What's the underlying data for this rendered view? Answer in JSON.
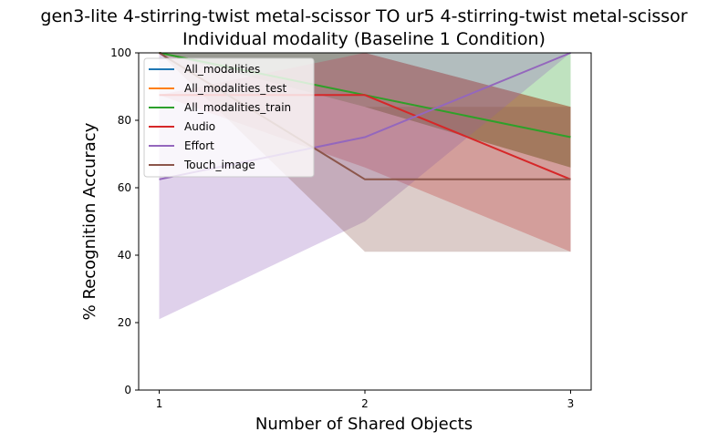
{
  "figure": {
    "title_line1": "gen3-lite 4-stirring-twist metal-scissor TO ur5 4-stirring-twist metal-scissor",
    "title_line2": "Individual modality (Baseline 1 Condition)"
  },
  "chart_data": {
    "type": "line",
    "title": "gen3-lite 4-stirring-twist metal-scissor TO ur5 4-stirring-twist metal-scissor\nIndividual modality (Baseline 1 Condition)",
    "xlabel": "Number of Shared Objects",
    "ylabel": "% Recognition Accuracy",
    "x": [
      1,
      2,
      3
    ],
    "xticks": [
      "1",
      "2",
      "3"
    ],
    "yticks": [
      "0",
      "20",
      "40",
      "60",
      "80",
      "100"
    ],
    "xlim": [
      0.9,
      3.1
    ],
    "ylim": [
      0,
      100
    ],
    "grid": false,
    "legend_position": "top-left",
    "series": [
      {
        "name": "All_modalities",
        "color": "#1f77b4",
        "values": [
          100,
          87.5,
          75
        ],
        "band_low": [
          100,
          84,
          66
        ],
        "band_high": [
          100,
          100,
          84
        ]
      },
      {
        "name": "All_modalities_test",
        "color": "#ff7f0e",
        "values": [
          100,
          87.5,
          75
        ],
        "band_low": [
          100,
          84,
          66
        ],
        "band_high": [
          100,
          100,
          84
        ]
      },
      {
        "name": "All_modalities_train",
        "color": "#2ca02c",
        "values": [
          100,
          87.5,
          75
        ],
        "band_low": [
          100,
          84,
          66
        ],
        "band_high": [
          100,
          100,
          100
        ]
      },
      {
        "name": "Audio",
        "color": "#d62728",
        "values": [
          87.5,
          87.5,
          62.5
        ],
        "band_low": [
          87.5,
          66,
          41
        ],
        "band_high": [
          87.5,
          100,
          84
        ]
      },
      {
        "name": "Effort",
        "color": "#9467bd",
        "values": [
          62.5,
          75,
          100
        ],
        "band_low": [
          21,
          50,
          100
        ],
        "band_high": [
          100,
          100,
          100
        ]
      },
      {
        "name": "Touch_image",
        "color": "#8c564b",
        "values": [
          100,
          62.5,
          62.5
        ],
        "band_low": [
          100,
          41,
          41
        ],
        "band_high": [
          100,
          84,
          84
        ]
      }
    ]
  }
}
